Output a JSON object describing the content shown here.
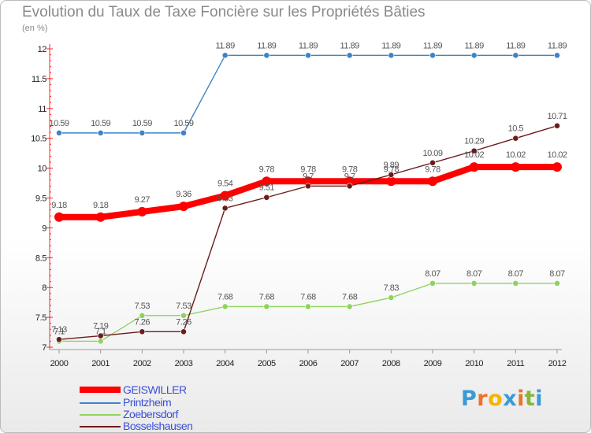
{
  "title": "Evolution du Taux de Taxe Foncière sur les Propriétés Bâties",
  "unit_label": "(en %)",
  "logo": {
    "text": "Proxiti",
    "letter_colors": [
      "#3a9bd5",
      "#e8742a",
      "#f5b400",
      "#3a9bd5",
      "#e8742a",
      "#88b53a",
      "#3a9bd5"
    ]
  },
  "chart_data": {
    "type": "line",
    "title": "Evolution du Taux de Taxe Foncière sur les Propriétés Bâties",
    "ylabel": "(en %)",
    "xlabel": "",
    "x": [
      "2000",
      "2001",
      "2002",
      "2003",
      "2004",
      "2005",
      "2006",
      "2007",
      "2008",
      "2009",
      "2010",
      "2011",
      "2012"
    ],
    "ylim": [
      7,
      12
    ],
    "yticks": [
      "7",
      "7.5",
      "8",
      "8.5",
      "9",
      "9.5",
      "10",
      "10.5",
      "11",
      "11.5",
      "12"
    ],
    "grid": false,
    "legend_position": "bottom-left",
    "series": [
      {
        "name": "GEISWILLER",
        "color": "#ff0000",
        "values": [
          9.18,
          9.18,
          9.27,
          9.36,
          9.54,
          9.78,
          9.78,
          9.78,
          9.78,
          9.78,
          10.02,
          10.02,
          10.02
        ],
        "labels": [
          "9.18",
          "9.18",
          "9.27",
          "9.36",
          "9.54",
          "9.78",
          "9.78",
          "9.78",
          "9.78",
          "9.78",
          "10.02",
          "10.02",
          "10.02"
        ]
      },
      {
        "name": "Printzheim",
        "color": "#3d85c6",
        "values": [
          10.59,
          10.59,
          10.59,
          10.59,
          11.89,
          11.89,
          11.89,
          11.89,
          11.89,
          11.89,
          11.89,
          11.89,
          11.89
        ],
        "labels": [
          "10.59",
          "10.59",
          "10.59",
          "10.59",
          "11.89",
          "11.89",
          "11.89",
          "11.89",
          "11.89",
          "11.89",
          "11.89",
          "11.89",
          "11.89"
        ]
      },
      {
        "name": "Zoebersdorf",
        "color": "#8ed35f",
        "values": [
          7.1,
          7.1,
          7.53,
          7.53,
          7.68,
          7.68,
          7.68,
          7.68,
          7.83,
          8.07,
          8.07,
          8.07,
          8.07
        ],
        "labels": [
          "7.1",
          "7.1",
          "7.53",
          "7.53",
          "7.68",
          "7.68",
          "7.68",
          "7.68",
          "7.83",
          "8.07",
          "8.07",
          "8.07",
          "8.07"
        ]
      },
      {
        "name": "Bosselshausen",
        "color": "#6b1c1c",
        "values": [
          7.13,
          7.19,
          7.26,
          7.26,
          9.33,
          9.51,
          9.7,
          9.7,
          9.89,
          10.09,
          10.29,
          10.5,
          10.71
        ],
        "labels": [
          "7.13",
          "7.19",
          "7.26",
          "7.26",
          "9.33",
          "9.51",
          "9.7",
          "9.7",
          "9.89",
          "10.09",
          "10.29",
          "10.5",
          "10.71"
        ]
      }
    ]
  }
}
